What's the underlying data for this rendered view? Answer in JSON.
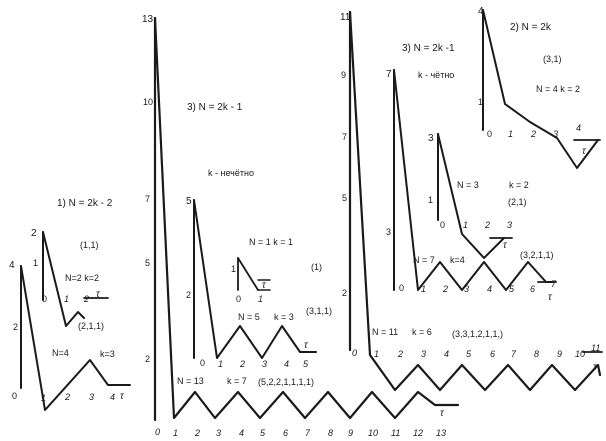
{
  "graphs": [
    {
      "id": "g1",
      "formula": "1) N = 2k - 2",
      "sub": {
        "params": "N=2   k=2",
        "seq": "(1,1)",
        "seq2": "(2,1,1)"
      },
      "main": {
        "params": "N=4",
        "k": "k=3"
      },
      "ylabels": [
        "4",
        "2"
      ],
      "subylabels": [
        "2",
        "1"
      ],
      "xlabels": [
        "0",
        "1",
        "2",
        "3",
        "4"
      ],
      "subxlabels": [
        "0",
        "1",
        "2"
      ],
      "tau": "τ"
    },
    {
      "id": "g2",
      "formula": "3) N = 2k - 1",
      "parity": "k - нечётно",
      "ylabels": [
        "13",
        "10",
        "7",
        "5",
        "2"
      ],
      "sub1": {
        "params": "N = 1  k = 1",
        "seq": "(1)",
        "ylabels": [
          "1"
        ],
        "xlabels": [
          "0",
          "1"
        ]
      },
      "sub2": {
        "params": "N = 5",
        "k": "k = 3",
        "seq": "(3,1,1)",
        "ylabels": [
          "5",
          "2"
        ],
        "xlabels": [
          "0",
          "1",
          "2",
          "3",
          "4",
          "5"
        ]
      },
      "main": {
        "params": "N = 13",
        "k": "k = 7",
        "seq": "(5,2,2,1,1,1,1)"
      },
      "xlabels": [
        "0",
        "1",
        "2",
        "3",
        "4",
        "5",
        "6",
        "7",
        "8",
        "9",
        "10",
        "11",
        "12",
        "13"
      ],
      "tau": "τ"
    },
    {
      "id": "g3",
      "formula": "3) N = 2k -1",
      "parity": "k - чётно",
      "ylabels": [
        "11",
        "9",
        "7",
        "5",
        "2"
      ],
      "sub1": {
        "params": "N = 3",
        "k": "k = 2",
        "seq": "(2,1)",
        "ylabels": [
          "3",
          "1"
        ],
        "xlabels": [
          "0",
          "1",
          "2",
          "3"
        ]
      },
      "sub2": {
        "params": "N = 7",
        "k": "k=4",
        "seq": "(3,2,1,1)",
        "ylabels": [
          "7",
          "3"
        ],
        "xlabels": [
          "0",
          "1",
          "2",
          "3",
          "4",
          "5",
          "6",
          "7"
        ]
      },
      "main": {
        "params": "N = 11",
        "k": "k = 6",
        "seq": "(3,3,1,2,1,1,)"
      },
      "xlabels": [
        "0",
        "1",
        "2",
        "3",
        "4",
        "5",
        "6",
        "7",
        "8",
        "9",
        "10",
        "11"
      ],
      "tau": "τ"
    },
    {
      "id": "g4",
      "formula": "2) N = 2k",
      "seq": "(3,1)",
      "params": "N = 4  k = 2",
      "ylabels": [
        "4",
        "1"
      ],
      "xlabels": [
        "0",
        "1",
        "2",
        "3",
        "4"
      ],
      "tau": "τ"
    }
  ]
}
